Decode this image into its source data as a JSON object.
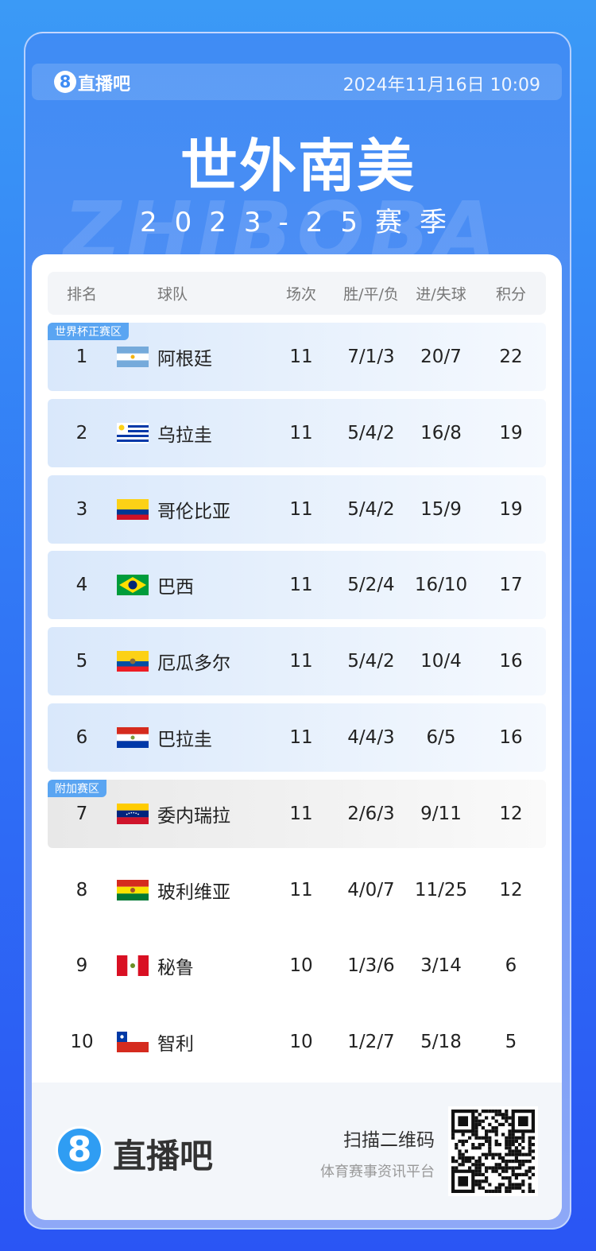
{
  "header": {
    "logo_mark": "8",
    "logo": "直播吧",
    "datetime": "2024年11月16日 10:09"
  },
  "title": "世外南美",
  "subtitle": "2023-25赛季",
  "watermark": "ZHIBOBA",
  "table": {
    "columns": [
      "排名",
      "球队",
      "场次",
      "胜/平/负",
      "进/失球",
      "积分"
    ],
    "groups": [
      {
        "label": "世界杯正赛区",
        "rows": [
          [
            1,
            "阿根廷",
            11,
            "7/1/3",
            "20/7",
            22
          ],
          [
            2,
            "乌拉圭",
            11,
            "5/4/2",
            "16/8",
            19
          ],
          [
            3,
            "哥伦比亚",
            11,
            "5/4/2",
            "15/9",
            19
          ],
          [
            4,
            "巴西",
            11,
            "5/2/4",
            "16/10",
            17
          ],
          [
            5,
            "厄瓜多尔",
            11,
            "5/4/2",
            "10/4",
            16
          ],
          [
            6,
            "巴拉圭",
            11,
            "4/4/3",
            "6/5",
            16
          ]
        ]
      },
      {
        "label": "附加赛区",
        "rows": [
          [
            7,
            "委内瑞拉",
            11,
            "2/6/3",
            "9/11",
            12
          ]
        ]
      },
      {
        "rows": [
          [
            8,
            "玻利维亚",
            11,
            "4/0/7",
            "11/25",
            12
          ],
          [
            9,
            "秘鲁",
            10,
            "1/3/6",
            "3/14",
            6
          ],
          [
            10,
            "智利",
            10,
            "1/2/7",
            "5/18",
            5
          ]
        ]
      }
    ]
  },
  "footer": {
    "logo_mark": "8",
    "logo": "直播吧",
    "scan": "扫描二维码",
    "slogan": "体育赛事资讯平台"
  }
}
